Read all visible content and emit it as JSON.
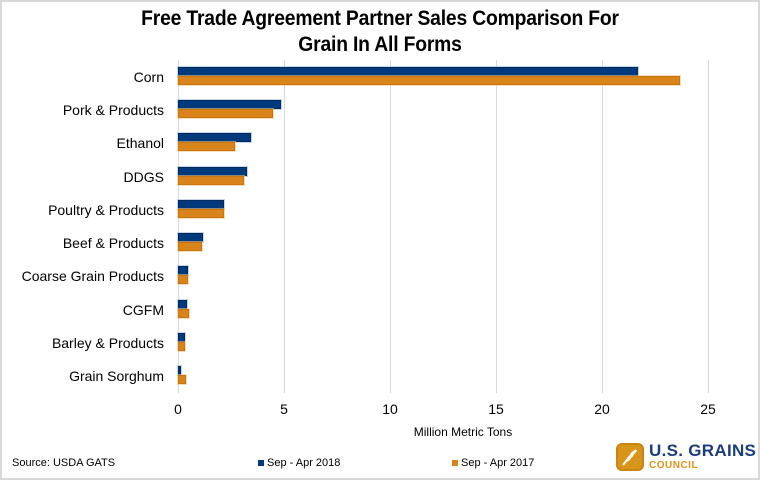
{
  "chart_data": {
    "type": "bar",
    "orientation": "horizontal",
    "title": "Free Trade Agreement Partner Sales Comparison For Grain In All Forms",
    "title_lines": [
      "Free Trade Agreement Partner Sales Comparison For",
      "Grain In All Forms"
    ],
    "xlabel": "Million Metric Tons",
    "ylabel": "",
    "xlim": [
      0,
      25
    ],
    "xticks": [
      "0",
      "5",
      "10",
      "15",
      "20",
      "25"
    ],
    "grid": "vertical",
    "legend_position": "bottom",
    "categories": [
      "Corn",
      "Pork & Products",
      "Ethanol",
      "DDGS",
      "Poultry & Products",
      "Beef & Products",
      "Coarse Grain Products",
      "CGFM",
      "Barley & Products",
      "Grain Sorghum"
    ],
    "series": [
      {
        "name": "Sep - Apr 2018",
        "color": "#003a7d",
        "values": [
          21.7,
          4.87,
          3.42,
          3.25,
          2.17,
          1.18,
          0.45,
          0.44,
          0.34,
          0.12
        ]
      },
      {
        "name": "Sep - Apr 2017",
        "color": "#d9841a",
        "values": [
          23.7,
          4.5,
          2.7,
          3.1,
          2.17,
          1.15,
          0.47,
          0.52,
          0.33,
          0.39
        ]
      }
    ],
    "source": "Source: USDA GATS"
  },
  "logo": {
    "main": "U.S. GRAINS",
    "sub": "COUNCIL"
  }
}
